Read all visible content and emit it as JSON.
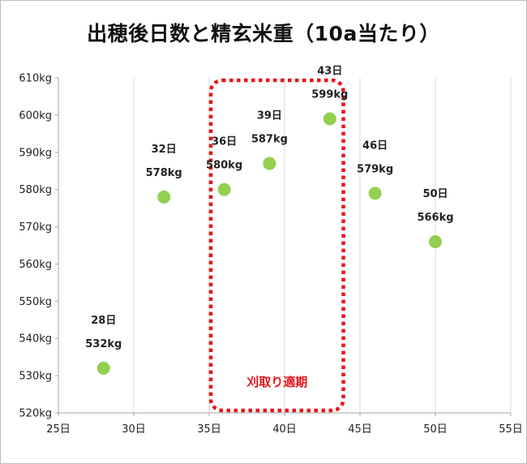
{
  "chart_data": {
    "type": "scatter",
    "title": "出穂後日数と精玄米重（10a当たり）",
    "xlabel": "",
    "ylabel": "",
    "x_unit": "日",
    "y_unit": "kg",
    "xlim": [
      25,
      55
    ],
    "ylim": [
      520,
      610
    ],
    "x_ticks": [
      25,
      30,
      35,
      40,
      45,
      50,
      55
    ],
    "y_ticks": [
      520,
      530,
      540,
      550,
      560,
      570,
      580,
      590,
      600,
      610
    ],
    "x_tick_labels": [
      "25日",
      "30日",
      "35日",
      "40日",
      "45日",
      "50日",
      "55日"
    ],
    "y_tick_labels": [
      "520kg",
      "530kg",
      "540kg",
      "550kg",
      "560kg",
      "570kg",
      "580kg",
      "590kg",
      "600kg",
      "610kg"
    ],
    "grid": "vertical",
    "point_color": "#92d050",
    "points": [
      {
        "x": 28,
        "y": 532,
        "day_label": "28日",
        "weight_label": "532kg"
      },
      {
        "x": 32,
        "y": 578,
        "day_label": "32日",
        "weight_label": "578kg"
      },
      {
        "x": 36,
        "y": 580,
        "day_label": "36日",
        "weight_label": "580kg"
      },
      {
        "x": 39,
        "y": 587,
        "day_label": "39日",
        "weight_label": "587kg"
      },
      {
        "x": 43,
        "y": 599,
        "day_label": "43日",
        "weight_label": "599kg"
      },
      {
        "x": 46,
        "y": 579,
        "day_label": "46日",
        "weight_label": "579kg"
      },
      {
        "x": 50,
        "y": 566,
        "day_label": "50日",
        "weight_label": "566kg"
      }
    ],
    "highlight": {
      "label": "刈取り適期",
      "x_from": 35,
      "x_to": 43.9,
      "color": "#e8141a",
      "style": "dotted"
    }
  }
}
